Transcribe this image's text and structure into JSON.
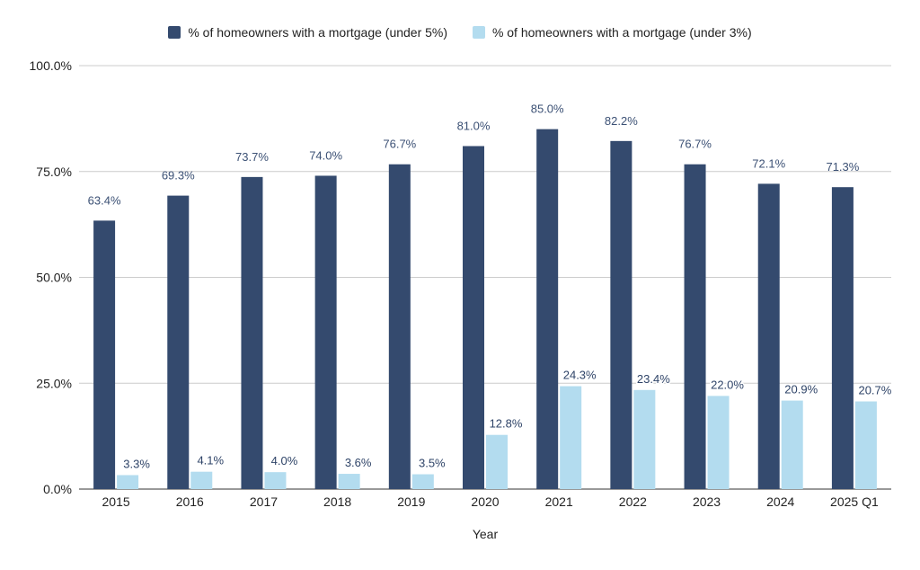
{
  "chart_data": {
    "type": "bar",
    "categories": [
      "2015",
      "2016",
      "2017",
      "2018",
      "2019",
      "2020",
      "2021",
      "2022",
      "2023",
      "2024",
      "2025 Q1"
    ],
    "series": [
      {
        "name": "% of homeowners with a mortgage (under 5%)",
        "color": "#344a6e",
        "values": [
          63.4,
          69.3,
          73.7,
          74.0,
          76.7,
          81.0,
          85.0,
          82.2,
          76.7,
          72.1,
          71.3
        ],
        "labels": [
          "63.4%",
          "69.3%",
          "73.7%",
          "74.0%",
          "76.7%",
          "81.0%",
          "85.0%",
          "82.2%",
          "76.7%",
          "72.1%",
          "71.3%"
        ]
      },
      {
        "name": "% of homeowners with a mortgage (under 3%)",
        "color": "#b3dcef",
        "values": [
          3.3,
          4.1,
          4.0,
          3.6,
          3.5,
          12.8,
          24.3,
          23.4,
          22.0,
          20.9,
          20.7
        ],
        "labels": [
          "3.3%",
          "4.1%",
          "4.0%",
          "3.6%",
          "3.5%",
          "12.8%",
          "24.3%",
          "23.4%",
          "22.0%",
          "20.9%",
          "20.7%"
        ]
      }
    ],
    "xlabel": "Year",
    "ylabel": "",
    "ylim": [
      0,
      100
    ],
    "yticks": [
      0,
      25,
      50,
      75,
      100
    ],
    "ytick_labels": [
      "0.0%",
      "25.0%",
      "50.0%",
      "75.0%",
      "100.0%"
    ],
    "grid": true,
    "legend_position": "top-center"
  }
}
